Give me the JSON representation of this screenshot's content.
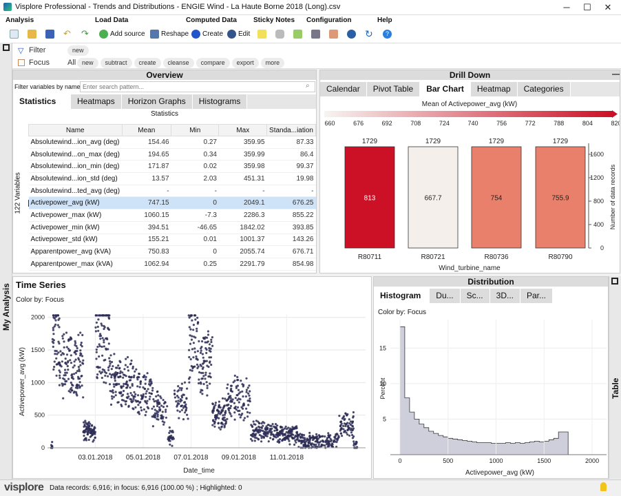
{
  "window": {
    "title": "Visplore Professional - Trends and Distributions - ENGIE Wind - La Haute Borne 2018 (Long).csv",
    "minimize": "─",
    "maximize": "☐",
    "close": "✕"
  },
  "menu": {
    "groups": [
      "Analysis",
      "Load Data",
      "Computed Data",
      "Sticky Notes",
      "Configuration",
      "Help"
    ],
    "add_source": "Add source",
    "reshape": "Reshape",
    "create": "Create",
    "edit": "Edit"
  },
  "filterbar": {
    "filter_label": "Filter",
    "filter_new": "new",
    "focus_label": "Focus",
    "focus_all": "All",
    "focus_buttons": [
      "new",
      "subtract",
      "create",
      "cleanse",
      "compare",
      "export",
      "more"
    ]
  },
  "sidebar": {
    "my_analysis": "My Analysis",
    "table": "Table"
  },
  "overview": {
    "title": "Overview",
    "filter_label": "Filter variables by name:",
    "filter_placeholder": "Enter search pattern...",
    "tabs": [
      "Statistics",
      "Heatmaps",
      "Horizon Graphs",
      "Histograms"
    ],
    "subtitle": "Statistics",
    "vars_count": "122 Variables",
    "columns": [
      "Name",
      "Mean",
      "Min",
      "Max",
      "Standa...iation"
    ],
    "rows": [
      {
        "name": "Absolutewind...ion_avg (deg)",
        "mean": "154.46",
        "min": "0.27",
        "max": "359.95",
        "std": "87.33"
      },
      {
        "name": "Absolutewind...on_max (deg)",
        "mean": "194.65",
        "min": "0.34",
        "max": "359.99",
        "std": "86.4"
      },
      {
        "name": "Absolutewind...ion_min (deg)",
        "mean": "171.87",
        "min": "0.02",
        "max": "359.98",
        "std": "99.37"
      },
      {
        "name": "Absolutewind...ion_std (deg)",
        "mean": "13.57",
        "min": "2.03",
        "max": "451.31",
        "std": "19.98"
      },
      {
        "name": "Absolutewind...ted_avg (deg)",
        "mean": "-",
        "min": "-",
        "max": "-",
        "std": "-"
      },
      {
        "name": "Activepower_avg (kW)",
        "mean": "747.15",
        "min": "0",
        "max": "2049.1",
        "std": "676.25",
        "selected": true
      },
      {
        "name": "Activepower_max (kW)",
        "mean": "1060.15",
        "min": "-7.3",
        "max": "2286.3",
        "std": "855.22"
      },
      {
        "name": "Activepower_min (kW)",
        "mean": "394.51",
        "min": "-46.65",
        "max": "1842.02",
        "std": "393.85"
      },
      {
        "name": "Activepower_std (kW)",
        "mean": "155.21",
        "min": "0.01",
        "max": "1001.37",
        "std": "143.26"
      },
      {
        "name": "Apparentpower_avg (kVA)",
        "mean": "750.83",
        "min": "0",
        "max": "2055.74",
        "std": "676.71"
      },
      {
        "name": "Apparentpower_max (kVA)",
        "mean": "1062.94",
        "min": "0.25",
        "max": "2291.79",
        "std": "854.98"
      }
    ]
  },
  "drilldown": {
    "title": "Drill Down",
    "tabs": [
      "Calendar",
      "Pivot Table",
      "Bar Chart",
      "Heatmap",
      "Categories"
    ],
    "legend_title": "Mean of Activepower_avg  (kW)",
    "legend_ticks": [
      "660",
      "676",
      "692",
      "708",
      "724",
      "740",
      "756",
      "772",
      "788",
      "804",
      "820"
    ],
    "colors": {
      "low": "#f7f4f1",
      "high": "#cc1126"
    }
  },
  "timeseries": {
    "title": "Time Series",
    "color_by": "Color by: Focus"
  },
  "distribution": {
    "title": "Distribution",
    "tabs": [
      "Histogram",
      "Du...",
      "Sc...",
      "3D...",
      "Par..."
    ],
    "color_by": "Color by: Focus"
  },
  "status": {
    "logo": "visplore",
    "text": "Data records: 6,916; in focus: 6,916 (100.00 %) ; Highlighted: 0"
  },
  "chart_data": [
    {
      "type": "bar",
      "categories": [
        "R80711",
        "R80721",
        "R80736",
        "R80790"
      ],
      "values": [
        813,
        667.7,
        754,
        755.9
      ],
      "counts": [
        1729,
        1729,
        1729,
        1729
      ],
      "colors": [
        "#cc1126",
        "#f5efeb",
        "#e8806c",
        "#e8806c"
      ],
      "xlabel": "Wind_turbine_name",
      "ylabel": "Number of data records",
      "ylim": [
        0,
        1729
      ],
      "yticks": [
        0,
        400,
        800,
        1200,
        1600
      ]
    },
    {
      "type": "scatter",
      "xlabel": "Date_time",
      "ylabel": "Activepower_avg (kW)",
      "x_ticks": [
        "03.01.2018",
        "05.01.2018",
        "07.01.2018",
        "09.01.2018",
        "11.01.2018"
      ],
      "y_ticks": [
        0,
        500,
        1000,
        1500,
        2000
      ],
      "ylim": [
        0,
        2050
      ],
      "xlim_days": [
        1,
        14.3
      ]
    },
    {
      "type": "bar",
      "xlabel": "Activepower_avg (kW)",
      "ylabel": "Percent",
      "x_ticks": [
        0,
        500,
        1000,
        1500,
        2000
      ],
      "y_ticks": [
        5,
        10,
        15
      ],
      "bin_width": 50,
      "x_start": -100,
      "values": [
        0,
        0,
        18,
        8,
        6,
        5,
        4.3,
        3.8,
        3.3,
        3,
        2.7,
        2.5,
        2.3,
        2.2,
        2.1,
        2,
        1.9,
        1.8,
        1.7,
        1.7,
        1.7,
        1.6,
        1.6,
        1.6,
        1.7,
        1.6,
        1.7,
        1.6,
        1.7,
        1.8,
        1.9,
        1.8,
        1.9,
        2.1,
        2.3,
        3.2,
        3.2,
        0,
        0,
        0,
        0,
        0,
        0
      ]
    }
  ]
}
